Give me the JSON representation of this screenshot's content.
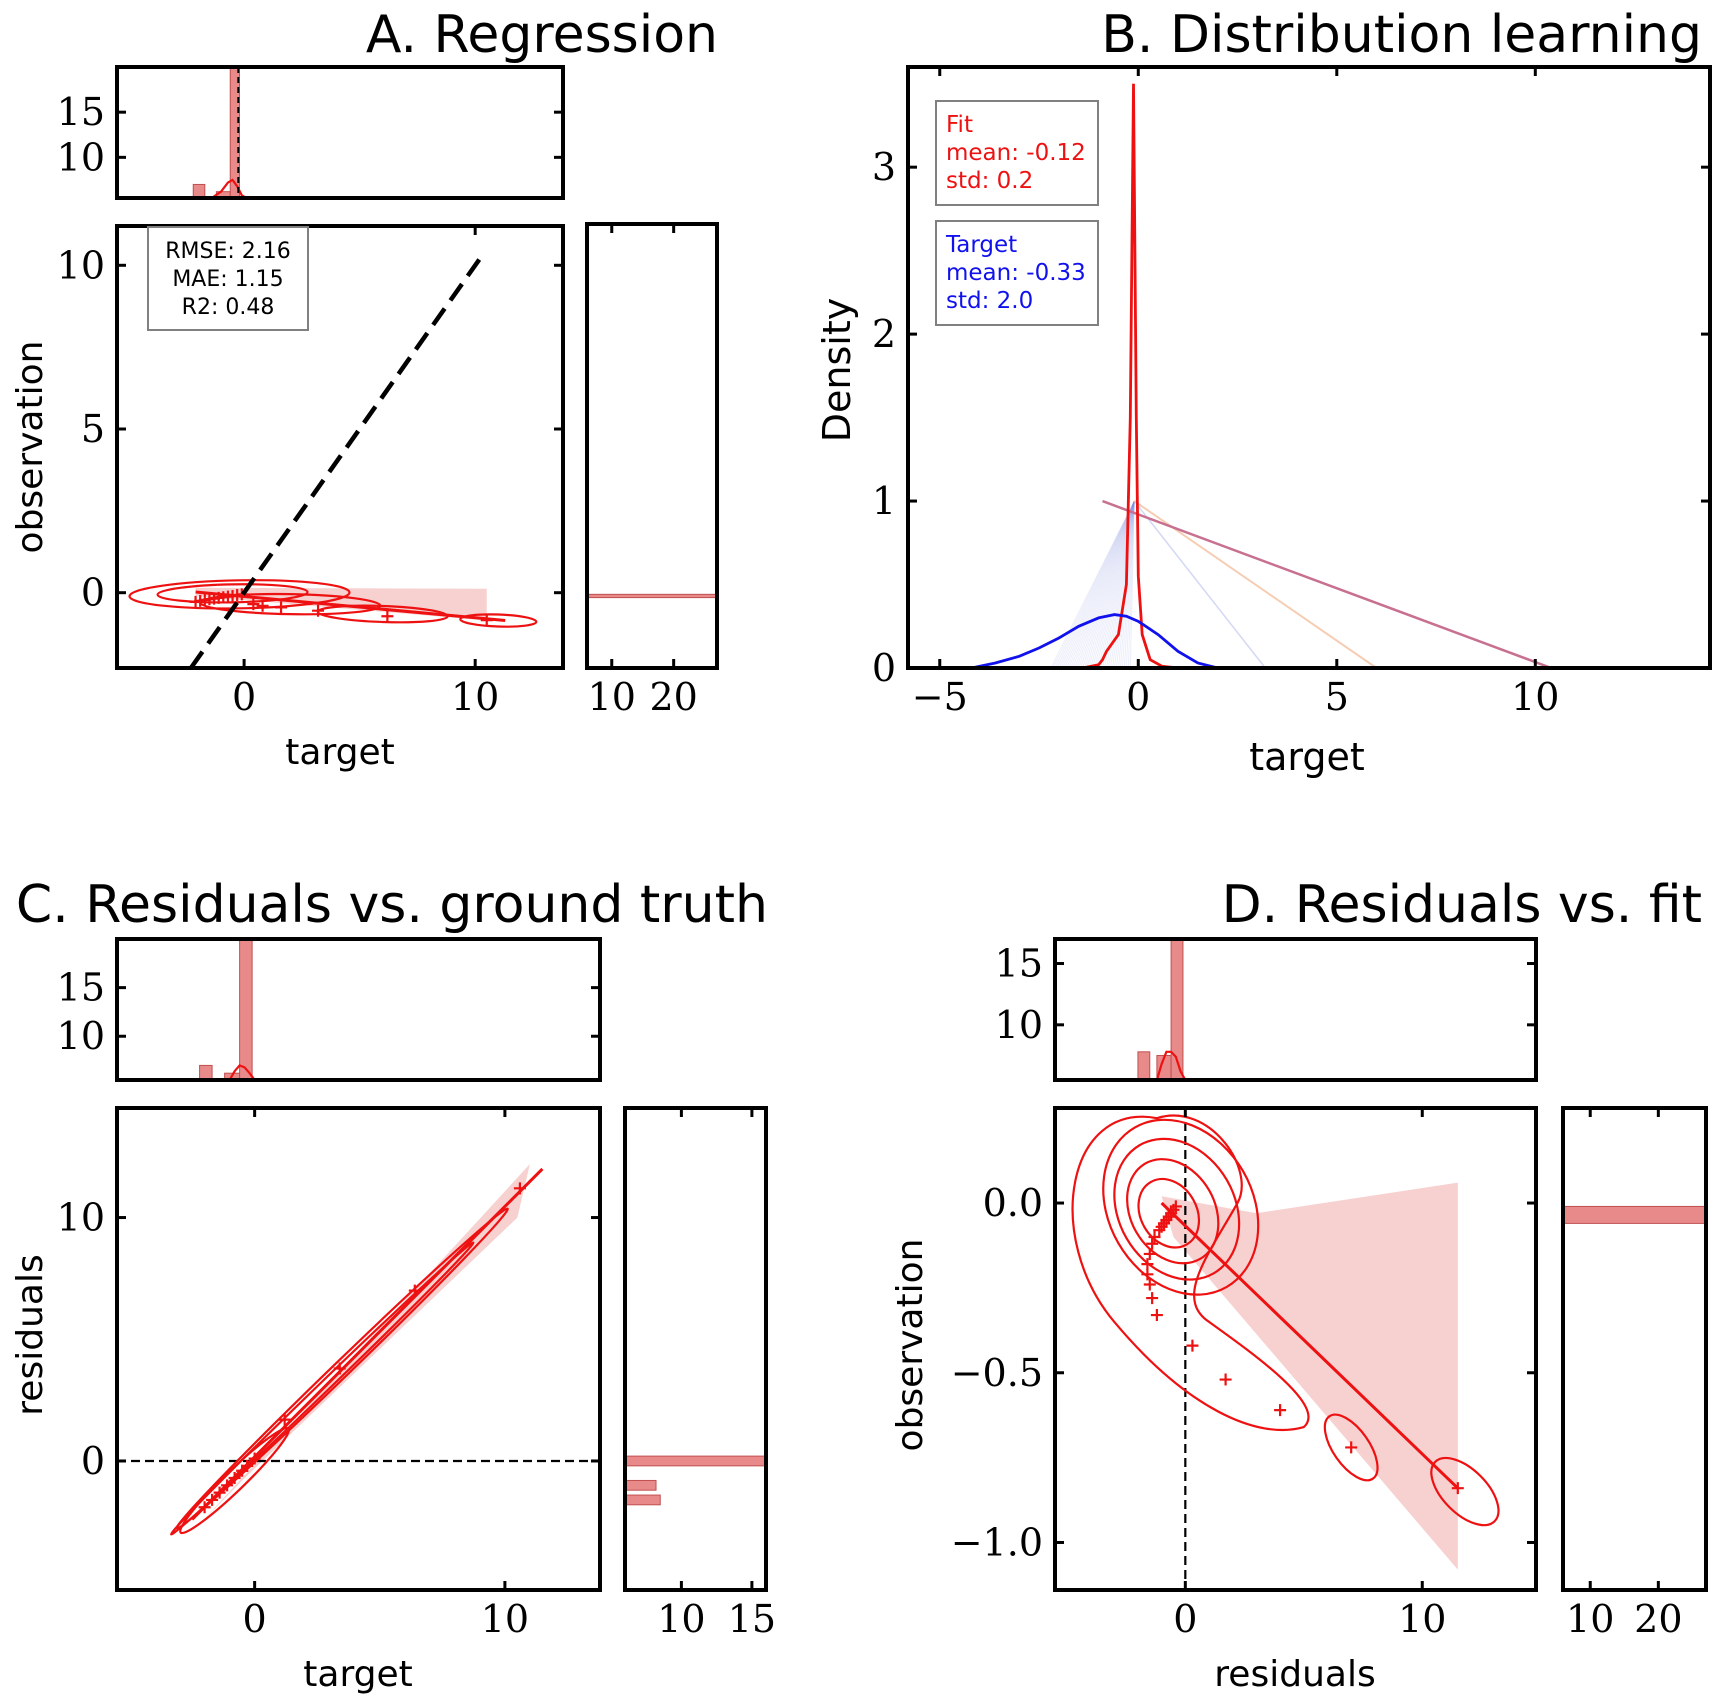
{
  "colors": {
    "fit": "#ee1111",
    "fit_fill": "#e88a8a",
    "band": "#f7d0d0",
    "target": "#1111ee",
    "axis": "#000000"
  },
  "chart_data": [
    {
      "id": "A",
      "type": "scatter",
      "title": "A. Regression",
      "xlabel": "target",
      "ylabel": "observation",
      "xlim": [
        -5.5,
        13.8
      ],
      "ylim": [
        -2.3,
        11.2
      ],
      "xticks": [
        0,
        10
      ],
      "yticks": [
        0,
        5,
        10
      ],
      "stats": [
        "RMSE: 2.16",
        "MAE: 1.15",
        "R2: 0.48"
      ],
      "identity_line": {
        "x": [
          -2.3,
          10.3
        ],
        "y": [
          -2.3,
          10.3
        ]
      },
      "points": {
        "x": [
          -2.1,
          -1.9,
          -1.7,
          -1.5,
          -1.3,
          -1.1,
          -0.9,
          -0.7,
          -0.5,
          -0.3,
          -0.1,
          0.4,
          0.8,
          1.6,
          3.2,
          6.2,
          10.5
        ],
        "y": [
          -0.28,
          -0.25,
          -0.22,
          -0.2,
          -0.18,
          -0.16,
          -0.14,
          -0.12,
          -0.1,
          -0.07,
          -0.05,
          -0.35,
          -0.4,
          -0.45,
          -0.55,
          -0.72,
          -0.84
        ]
      },
      "fit_line": {
        "x": [
          -2.1,
          11.3
        ],
        "y": [
          0.02,
          -0.85
        ]
      },
      "top_hist": {
        "ylim": [
          5.5,
          20.0
        ],
        "yticks": [
          10,
          15
        ],
        "bars": [
          {
            "x": [
              -2.2,
              -1.7
            ],
            "y": 7.0
          },
          {
            "x": [
              -1.2,
              -0.6
            ],
            "y": 6.2
          },
          {
            "x": [
              -0.6,
              -0.2
            ],
            "y": 20.0
          }
        ],
        "kde": {
          "x": [
            -1.4,
            -1.0,
            -0.7,
            -0.5,
            -0.3,
            -0.1,
            0.1
          ],
          "y": [
            5.5,
            6.2,
            7.2,
            7.5,
            6.8,
            5.8,
            5.5
          ]
        }
      },
      "right_hist": {
        "xlim": [
          6,
          27
        ],
        "xticks": [
          10,
          20
        ],
        "bars": [
          {
            "y": [
              -0.15,
              -0.05
            ],
            "x": 27
          }
        ]
      }
    },
    {
      "id": "B",
      "type": "line",
      "title": "B. Distribution learning",
      "xlabel": "target",
      "ylabel": "Density",
      "xlim": [
        -5.8,
        14.4
      ],
      "ylim": [
        0,
        3.6
      ],
      "xticks": [
        -5,
        0,
        5,
        10
      ],
      "yticks": [
        0,
        1,
        2,
        3
      ],
      "series": [
        {
          "name": "Fit",
          "mean": "-0.12",
          "std": "0.2",
          "x": [
            -1.4,
            -1.0,
            -0.9,
            -0.8,
            -0.5,
            -0.3,
            -0.2,
            -0.12,
            -0.05,
            0.0,
            0.1,
            0.3,
            0.6,
            1.0
          ],
          "y": [
            0.0,
            0.02,
            0.05,
            0.1,
            0.2,
            0.5,
            1.5,
            3.5,
            1.5,
            0.55,
            0.2,
            0.05,
            0.01,
            0.0
          ]
        },
        {
          "name": "Target",
          "mean": "-0.33",
          "std": "2.0",
          "x": [
            -4.2,
            -3.6,
            -3.0,
            -2.5,
            -2.0,
            -1.5,
            -1.0,
            -0.6,
            -0.3,
            0.0,
            0.5,
            1.0,
            1.5,
            2.0
          ],
          "y": [
            0.0,
            0.03,
            0.07,
            0.12,
            0.18,
            0.25,
            0.3,
            0.32,
            0.31,
            0.28,
            0.2,
            0.1,
            0.03,
            0.0
          ]
        }
      ],
      "connector": {
        "x": [
          -0.9,
          10.4
        ],
        "y": [
          1.0,
          0.0
        ]
      }
    },
    {
      "id": "C",
      "type": "scatter",
      "title": "C. Residuals vs. ground truth",
      "xlabel": "target",
      "ylabel": "residuals",
      "xlim": [
        -5.5,
        13.8
      ],
      "ylim": [
        -5.3,
        14.5
      ],
      "xticks": [
        0,
        10
      ],
      "yticks": [
        0,
        10
      ],
      "zero_line": 0,
      "points": {
        "x": [
          -2.0,
          -1.7,
          -1.4,
          -1.1,
          -0.8,
          -0.5,
          -0.3,
          0.0,
          1.2,
          3.4,
          6.4,
          10.6
        ],
        "y": [
          -1.9,
          -1.6,
          -1.3,
          -1.0,
          -0.7,
          -0.4,
          -0.2,
          0.1,
          1.7,
          3.8,
          7.0,
          11.2
        ]
      },
      "fit_line": {
        "x": [
          -2.5,
          11.5
        ],
        "y": [
          -2.4,
          12.0
        ]
      },
      "top_hist": {
        "ylim": [
          5.5,
          20.0
        ],
        "yticks": [
          10,
          15
        ],
        "bars": [
          {
            "x": [
              -2.2,
              -1.7
            ],
            "y": 7.0
          },
          {
            "x": [
              -1.2,
              -0.6
            ],
            "y": 6.2
          },
          {
            "x": [
              -0.6,
              -0.1
            ],
            "y": 20.0
          }
        ],
        "kde": {
          "x": [
            -1.0,
            -0.8,
            -0.6,
            -0.4,
            -0.2,
            0.0
          ],
          "y": [
            5.5,
            6.4,
            7.0,
            6.8,
            6.2,
            5.5
          ]
        }
      },
      "right_hist": {
        "xlim": [
          6,
          16
        ],
        "xticks": [
          10,
          15
        ],
        "bars": [
          {
            "y": [
              -0.2,
              0.2
            ],
            "x": 16.0
          },
          {
            "y": [
              -1.2,
              -0.8
            ],
            "x": 8.2
          },
          {
            "y": [
              -1.8,
              -1.4
            ],
            "x": 8.5
          }
        ]
      }
    },
    {
      "id": "D",
      "type": "scatter",
      "title": "D. Residuals vs. fit",
      "xlabel": "residuals",
      "ylabel": "observation",
      "xlim": [
        -5.5,
        14.8
      ],
      "ylim": [
        -1.14,
        0.28
      ],
      "xticks": [
        0,
        10
      ],
      "yticks": [
        -1.0,
        -0.5,
        0.0
      ],
      "ytick_labels": [
        "−1.0",
        "−0.5",
        "0.0"
      ],
      "zero_line": 0,
      "points": {
        "x": [
          -0.4,
          -0.5,
          -0.6,
          -0.7,
          -0.8,
          -0.9,
          -1.0,
          -1.1,
          -1.3,
          -1.4,
          -1.5,
          -1.6,
          -1.6,
          -1.5,
          -1.4,
          -1.2,
          0.3,
          1.7,
          4.0,
          7.0,
          11.5
        ],
        "y": [
          -0.01,
          -0.02,
          -0.03,
          -0.04,
          -0.05,
          -0.06,
          -0.07,
          -0.08,
          -0.1,
          -0.12,
          -0.15,
          -0.18,
          -0.21,
          -0.24,
          -0.28,
          -0.33,
          -0.42,
          -0.52,
          -0.61,
          -0.72,
          -0.84
        ]
      },
      "fit_line": {
        "x": [
          -1.0,
          11.5
        ],
        "y": [
          0.0,
          -0.84
        ]
      },
      "top_hist": {
        "ylim": [
          5.5,
          17.0
        ],
        "yticks": [
          10,
          15
        ],
        "bars": [
          {
            "x": [
              -2.0,
              -1.5
            ],
            "y": 7.8
          },
          {
            "x": [
              -1.2,
              -0.6
            ],
            "y": 7.5
          },
          {
            "x": [
              -0.6,
              -0.1
            ],
            "y": 17.0
          }
        ],
        "kde": {
          "x": [
            -1.2,
            -1.0,
            -0.8,
            -0.6,
            -0.4,
            -0.2,
            0.0
          ],
          "y": [
            5.5,
            6.8,
            7.8,
            7.8,
            7.4,
            6.2,
            5.5
          ]
        }
      },
      "right_hist": {
        "xlim": [
          6,
          27
        ],
        "xticks": [
          10,
          20
        ],
        "bars": [
          {
            "y": [
              -0.06,
              -0.01
            ],
            "x": 27
          }
        ]
      }
    }
  ]
}
